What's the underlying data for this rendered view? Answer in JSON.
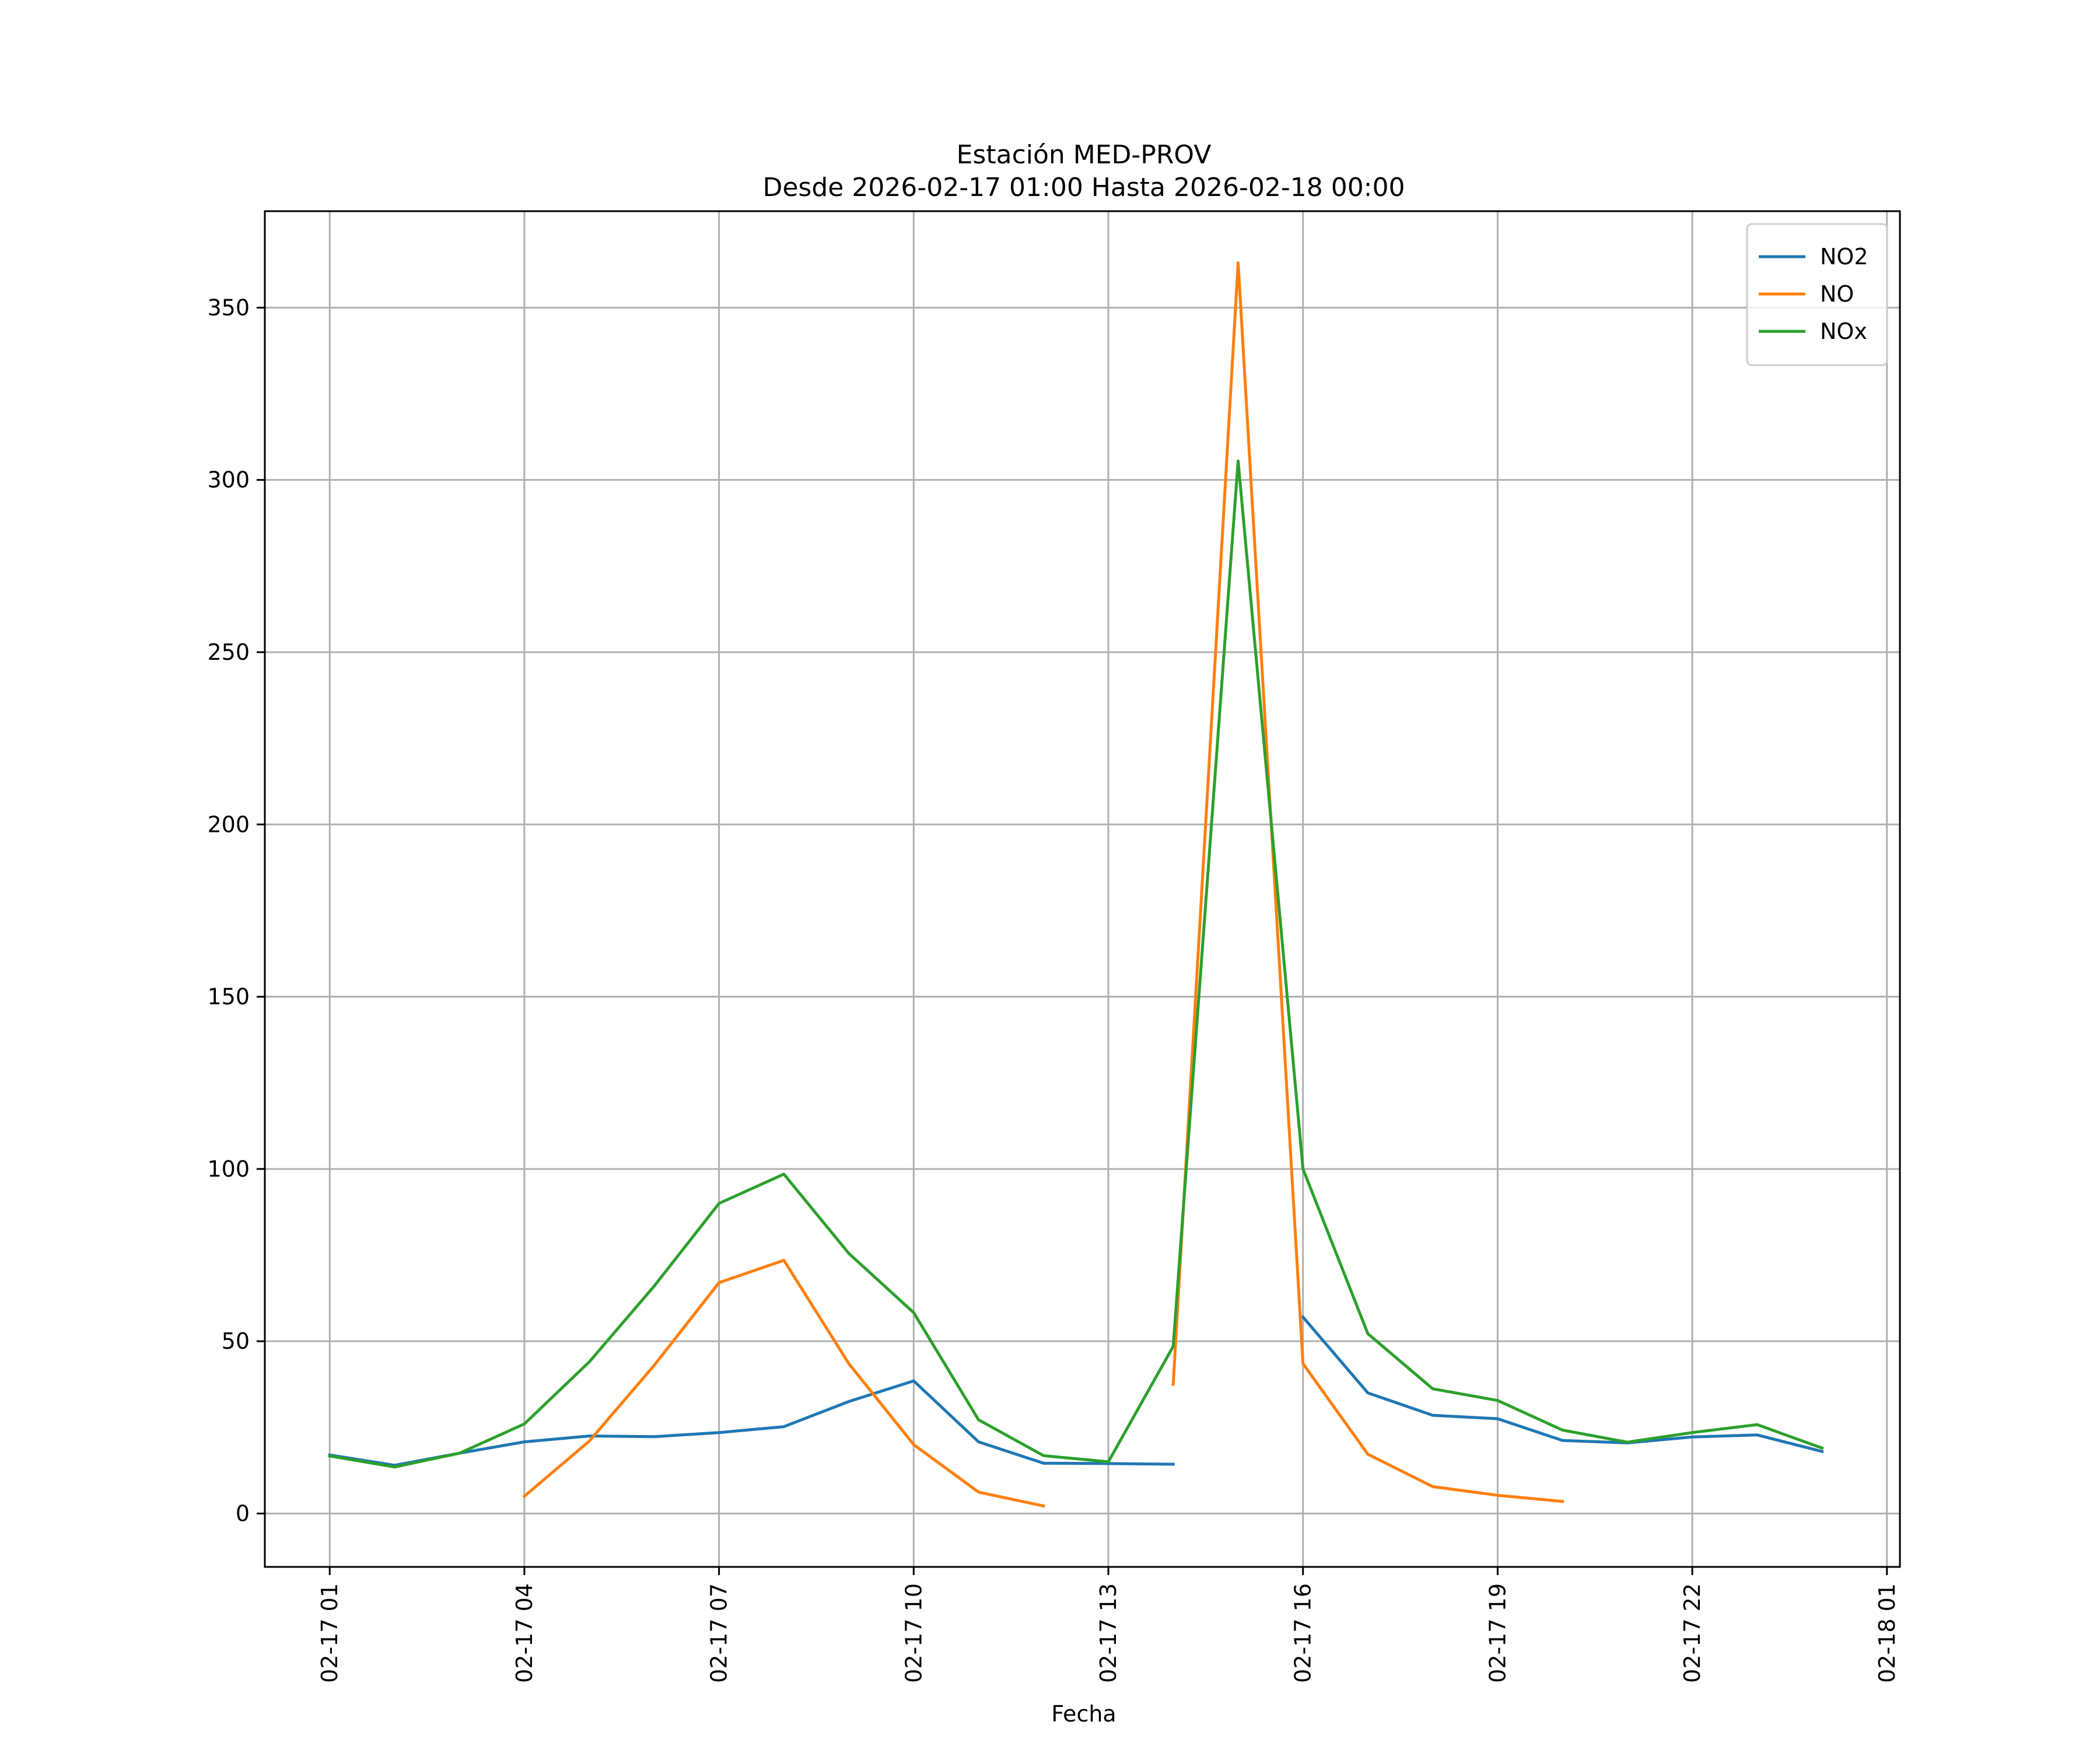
{
  "chart_data": {
    "type": "line",
    "title": "Estación MED-PROV",
    "subtitle": "Desde 2026-02-17 01:00 Hasta 2026-02-18 00:00",
    "xlabel": "Fecha",
    "ylabel": "",
    "xlim": [
      "2026-02-17 00:00",
      "2026-02-18 01:12"
    ],
    "ylim": [
      -15.5,
      378
    ],
    "grid": true,
    "legend_position": "top-right",
    "xticks": [
      {
        "value": "2026-02-17 01:00",
        "label": "02-17 01"
      },
      {
        "value": "2026-02-17 04:00",
        "label": "02-17 04"
      },
      {
        "value": "2026-02-17 07:00",
        "label": "02-17 07"
      },
      {
        "value": "2026-02-17 10:00",
        "label": "02-17 10"
      },
      {
        "value": "2026-02-17 13:00",
        "label": "02-17 13"
      },
      {
        "value": "2026-02-17 16:00",
        "label": "02-17 16"
      },
      {
        "value": "2026-02-17 19:00",
        "label": "02-17 19"
      },
      {
        "value": "2026-02-17 22:00",
        "label": "02-17 22"
      },
      {
        "value": "2026-02-18 01:00",
        "label": "02-18 01"
      }
    ],
    "yticks": [
      {
        "value": 0,
        "label": "0"
      },
      {
        "value": 50,
        "label": "50"
      },
      {
        "value": 100,
        "label": "100"
      },
      {
        "value": 150,
        "label": "150"
      },
      {
        "value": 200,
        "label": "200"
      },
      {
        "value": 250,
        "label": "250"
      },
      {
        "value": 300,
        "label": "300"
      },
      {
        "value": 350,
        "label": "350"
      }
    ],
    "x": [
      "2026-02-17 01:00",
      "2026-02-17 02:00",
      "2026-02-17 03:00",
      "2026-02-17 04:00",
      "2026-02-17 05:00",
      "2026-02-17 06:00",
      "2026-02-17 07:00",
      "2026-02-17 08:00",
      "2026-02-17 09:00",
      "2026-02-17 10:00",
      "2026-02-17 11:00",
      "2026-02-17 12:00",
      "2026-02-17 13:00",
      "2026-02-17 14:00",
      "2026-02-17 15:00",
      "2026-02-17 16:00",
      "2026-02-17 17:00",
      "2026-02-17 18:00",
      "2026-02-17 19:00",
      "2026-02-17 20:00",
      "2026-02-17 21:00",
      "2026-02-17 22:00",
      "2026-02-17 23:00",
      "2026-02-18 00:00"
    ],
    "series": [
      {
        "name": "NO2",
        "color": "#1f77b4",
        "values": [
          17,
          14,
          17.5,
          20.8,
          22.5,
          22.3,
          23.5,
          25.2,
          32.5,
          38.5,
          20.8,
          14.6,
          14.5,
          14.3,
          null,
          57,
          35,
          28.5,
          27.5,
          21.2,
          20.5,
          22.2,
          22.8,
          18
        ]
      },
      {
        "name": "NO",
        "color": "#ff7f0e",
        "values": [
          null,
          null,
          null,
          5,
          21,
          43,
          67,
          73.5,
          43.5,
          20,
          6.2,
          2.2,
          null,
          37.5,
          363,
          43.5,
          17.2,
          7.8,
          5.3,
          3.5,
          null,
          null,
          null,
          null
        ]
      },
      {
        "name": "NOx",
        "color": "#2ca02c",
        "values": [
          16.7,
          13.5,
          17.5,
          26,
          44,
          66,
          90,
          98.5,
          75.5,
          58.3,
          27.2,
          16.8,
          15,
          48.5,
          305.5,
          100,
          52.2,
          36.2,
          32.8,
          24.2,
          20.7,
          23.5,
          25.8,
          19
        ]
      }
    ]
  }
}
